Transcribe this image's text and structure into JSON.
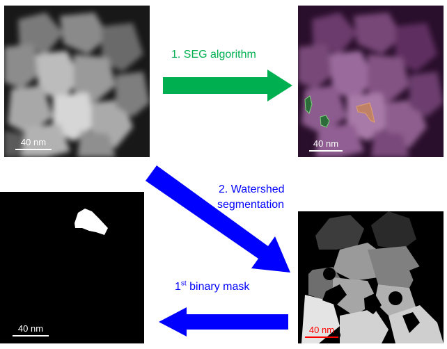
{
  "panels": {
    "original": {
      "scalebar": "40 nm"
    },
    "seg_result": {
      "scalebar": "40 nm"
    },
    "binary_mask": {
      "scalebar": "40 nm"
    },
    "watershed_result": {
      "scalebar": "40 nm"
    }
  },
  "steps": {
    "step1": {
      "label": "1. SEG algorithm",
      "color": "#00b050"
    },
    "step2": {
      "line1": "2. Watershed",
      "line2": "segmentation",
      "color": "#0000ff"
    },
    "step3": {
      "sup": "st",
      "num": "1",
      "text": " binary mask",
      "color": "#0000ff"
    }
  },
  "colors": {
    "green_arrow": "#00b050",
    "blue_arrow": "#0000ff",
    "purple_tint": "#5b2a5e",
    "seg_green": "#2e6b3a",
    "seg_orange": "#c4845a",
    "scalebar_white": "#ffffff",
    "scalebar_red": "#ff0000"
  }
}
